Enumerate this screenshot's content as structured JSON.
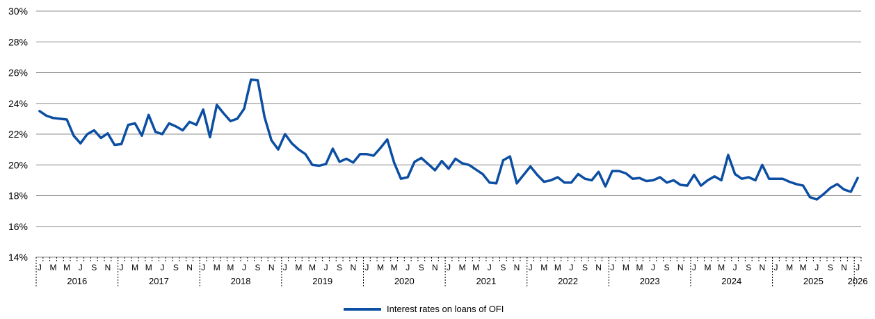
{
  "chart_data": {
    "type": "line",
    "title": "",
    "xlabel": "",
    "ylabel": "",
    "ylim": [
      14,
      30
    ],
    "y_ticks": [
      "14%",
      "16%",
      "18%",
      "20%",
      "22%",
      "24%",
      "26%",
      "28%",
      "30%"
    ],
    "month_tick_labels": [
      "J",
      "M",
      "M",
      "J",
      "S",
      "N"
    ],
    "year_labels": [
      "2016",
      "2017",
      "2018",
      "2019",
      "2020",
      "2021",
      "2022",
      "2023",
      "2024",
      "2025",
      "2026"
    ],
    "x_start": "2016-01",
    "frequency": "monthly",
    "grid": true,
    "legend_position": "bottom",
    "series": [
      {
        "name": "Interest rates on loans of OFI",
        "color": "#0b4ea2",
        "values": [
          23.5,
          23.2,
          23.05,
          23.0,
          22.95,
          21.9,
          21.4,
          22.0,
          22.25,
          21.75,
          22.05,
          21.3,
          21.35,
          22.6,
          22.7,
          21.9,
          23.25,
          22.15,
          22.0,
          22.7,
          22.5,
          22.25,
          22.8,
          22.6,
          23.6,
          21.8,
          23.9,
          23.35,
          22.85,
          23.0,
          23.65,
          25.55,
          25.5,
          23.1,
          21.6,
          21.0,
          22.0,
          21.4,
          21.0,
          20.7,
          20.0,
          19.95,
          20.05,
          21.05,
          20.2,
          20.4,
          20.15,
          20.7,
          20.7,
          20.6,
          21.1,
          21.65,
          20.15,
          19.1,
          19.2,
          20.2,
          20.45,
          20.05,
          19.65,
          20.25,
          19.75,
          20.4,
          20.1,
          20.0,
          19.7,
          19.4,
          18.85,
          18.8,
          20.3,
          20.55,
          18.8,
          19.35,
          19.9,
          19.35,
          18.9,
          19.0,
          19.2,
          18.85,
          18.85,
          19.4,
          19.1,
          19.0,
          19.55,
          18.6,
          19.6,
          19.6,
          19.45,
          19.1,
          19.15,
          18.95,
          19.0,
          19.2,
          18.85,
          19.0,
          18.7,
          18.65,
          19.35,
          18.65,
          19.0,
          19.25,
          19.0,
          20.65,
          19.4,
          19.1,
          19.2,
          19.0,
          20.0,
          19.1,
          19.1,
          19.1,
          18.9,
          18.75,
          18.65,
          17.9,
          17.75,
          18.1,
          18.5,
          18.75,
          18.4,
          18.25,
          19.15
        ]
      }
    ]
  }
}
